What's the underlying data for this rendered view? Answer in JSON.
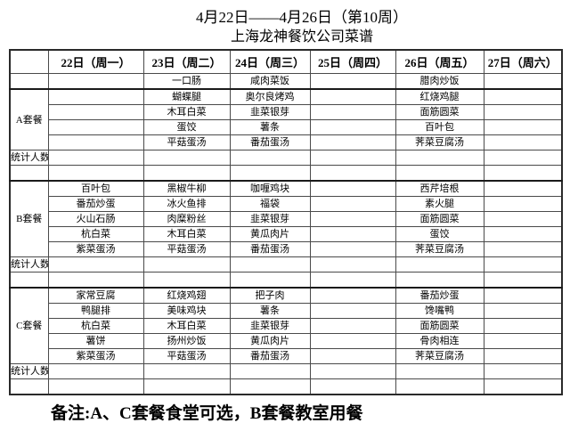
{
  "page": {
    "title": "4月22日——4月26日（第10周）",
    "subtitle": "上海龙神餐饮公司菜谱",
    "footnote": "备注:A、C套餐食堂可选，B套餐教室用餐"
  },
  "colors": {
    "background": "#ffffff",
    "grid_line": "#4a4a4a",
    "heavy_line": "#1a1a1a",
    "text": "#000000"
  },
  "menu_table": {
    "columns": [
      "",
      "22日（周一）",
      "23日（周二）",
      "24日（周三）",
      "25日（周四）",
      "26日（周五）",
      "27日（周六）"
    ],
    "rows": [
      {
        "label": "",
        "label_rowspan": 1,
        "heavy": false,
        "cells": [
          "",
          "一口肠",
          "咸肉菜饭",
          "",
          "腊肉炒饭",
          ""
        ]
      },
      {
        "label": "A套餐",
        "label_rowspan": 4,
        "heavy": true,
        "cells": [
          "",
          "蝴蝶腿",
          "奥尔良烤鸡",
          "",
          "红烧鸡腿",
          ""
        ]
      },
      {
        "cells": [
          "",
          "木耳白菜",
          "韭菜银芽",
          "",
          "面筋圆菜",
          ""
        ]
      },
      {
        "cells": [
          "",
          "蛋饺",
          "薯条",
          "",
          "百叶包",
          ""
        ]
      },
      {
        "cells": [
          "",
          "平菇蛋汤",
          "番茄蛋汤",
          "",
          "荠菜豆腐汤",
          ""
        ]
      },
      {
        "label": "统计人数",
        "label_rowspan": 1,
        "cells": [
          "",
          "",
          "",
          "",
          "",
          ""
        ]
      },
      {
        "label": "",
        "label_rowspan": 1,
        "cells": [
          "",
          "",
          "",
          "",
          "",
          ""
        ]
      },
      {
        "label": "B套餐",
        "label_rowspan": 5,
        "heavy": true,
        "cells": [
          "百叶包",
          "黑椒牛柳",
          "咖喱鸡块",
          "",
          "西芹培根",
          ""
        ]
      },
      {
        "cells": [
          "番茄炒蛋",
          "冰火鱼排",
          "福袋",
          "",
          "素火腿",
          ""
        ]
      },
      {
        "cells": [
          "火山石肠",
          "肉糜粉丝",
          "韭菜银芽",
          "",
          "面筋圆菜",
          ""
        ]
      },
      {
        "cells": [
          "杭白菜",
          "木耳白菜",
          "黄瓜肉片",
          "",
          "蛋饺",
          ""
        ]
      },
      {
        "cells": [
          "紫菜蛋汤",
          "平菇蛋汤",
          "番茄蛋汤",
          "",
          "荠菜豆腐汤",
          ""
        ]
      },
      {
        "label": "统计人数",
        "label_rowspan": 1,
        "cells": [
          "",
          "",
          "",
          "",
          "",
          ""
        ]
      },
      {
        "label": "",
        "label_rowspan": 1,
        "cells": [
          "",
          "",
          "",
          "",
          "",
          ""
        ]
      },
      {
        "label": "C套餐",
        "label_rowspan": 5,
        "heavy": true,
        "cells": [
          "家常豆腐",
          "红烧鸡翅",
          "把子肉",
          "",
          "番茄炒蛋",
          ""
        ]
      },
      {
        "cells": [
          "鸭腿排",
          "美味鸡块",
          "薯条",
          "",
          "馋嘴鸭",
          ""
        ]
      },
      {
        "cells": [
          "杭白菜",
          "木耳白菜",
          "韭菜银芽",
          "",
          "面筋圆菜",
          ""
        ]
      },
      {
        "cells": [
          "薯饼",
          "扬州炒饭",
          "黄瓜肉片",
          "",
          "骨肉相连",
          ""
        ]
      },
      {
        "cells": [
          "紫菜蛋汤",
          "平菇蛋汤",
          "番茄蛋汤",
          "",
          "荠菜豆腐汤",
          ""
        ]
      },
      {
        "label": "统计人数",
        "label_rowspan": 1,
        "cells": [
          "",
          "",
          "",
          "",
          "",
          ""
        ]
      },
      {
        "label": "",
        "label_rowspan": 1,
        "cells": [
          "",
          "",
          "",
          "",
          "",
          ""
        ]
      }
    ]
  }
}
